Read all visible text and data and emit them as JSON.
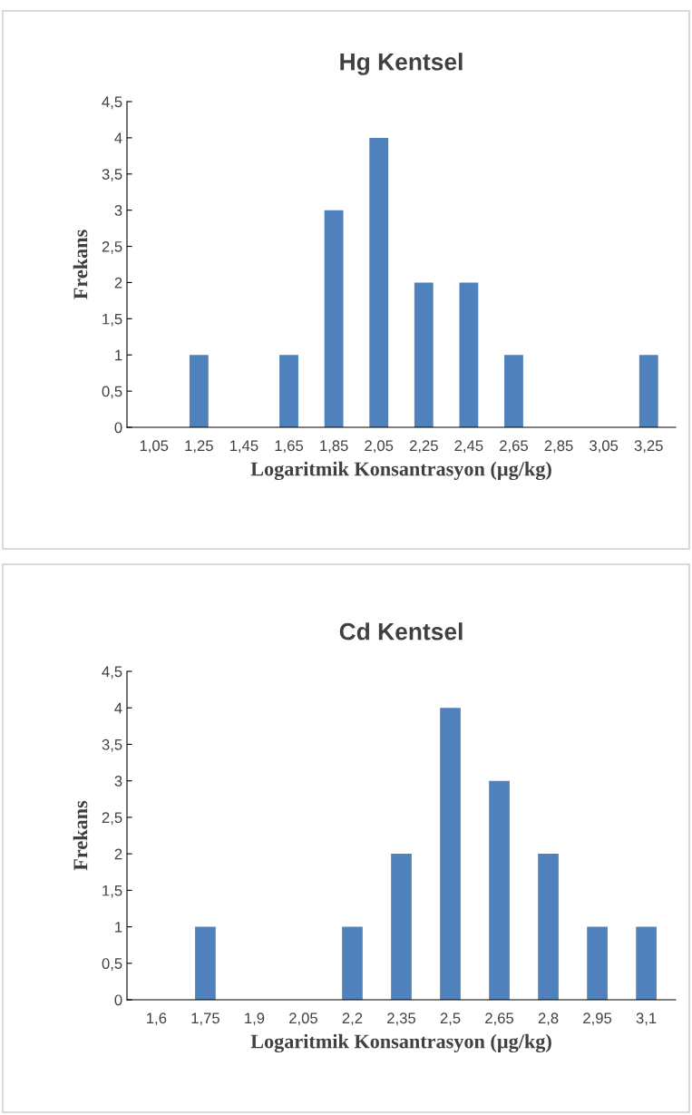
{
  "chart_data": [
    {
      "type": "bar",
      "title": "Hg Kentsel",
      "xlabel": "Logaritmik Konsantrasyon (µg/kg)",
      "ylabel": "Frekans",
      "categories": [
        "1,05",
        "1,25",
        "1,45",
        "1,65",
        "1,85",
        "2,05",
        "2,25",
        "2,45",
        "2,65",
        "2,85",
        "3,05",
        "3,25"
      ],
      "values": [
        0,
        1,
        0,
        1,
        3,
        4,
        2,
        2,
        1,
        0,
        0,
        1
      ],
      "color": "#4f81bd",
      "ylim": [
        0,
        4.5
      ],
      "yticks": [
        0,
        {
          "value": 0.5,
          "label": "0,5"
        },
        1,
        {
          "value": 1.5,
          "label": "1,5"
        },
        2,
        {
          "value": 2.5,
          "label": "2,5"
        },
        3,
        {
          "value": 3.5,
          "label": "3,5"
        },
        4,
        {
          "value": 4.5,
          "label": "4,5"
        }
      ],
      "grid": false
    },
    {
      "type": "bar",
      "title": "Cd Kentsel",
      "xlabel": "Logaritmik Konsantrasyon (µg/kg)",
      "ylabel": "Frekans",
      "categories": [
        "1,6",
        "1,75",
        "1,9",
        "2,05",
        "2,2",
        "2,35",
        "2,5",
        "2,65",
        "2,8",
        "2,95",
        "3,1"
      ],
      "values": [
        0,
        1,
        0,
        0,
        1,
        2,
        4,
        3,
        2,
        1,
        1
      ],
      "color": "#4f81bd",
      "ylim": [
        0,
        4.5
      ],
      "yticks": [
        0,
        {
          "value": 0.5,
          "label": "0,5"
        },
        1,
        {
          "value": 1.5,
          "label": "1,5"
        },
        2,
        {
          "value": 2.5,
          "label": "2,5"
        },
        3,
        {
          "value": 3.5,
          "label": "3,5"
        },
        4,
        {
          "value": 4.5,
          "label": "4,5"
        }
      ],
      "grid": false
    }
  ]
}
